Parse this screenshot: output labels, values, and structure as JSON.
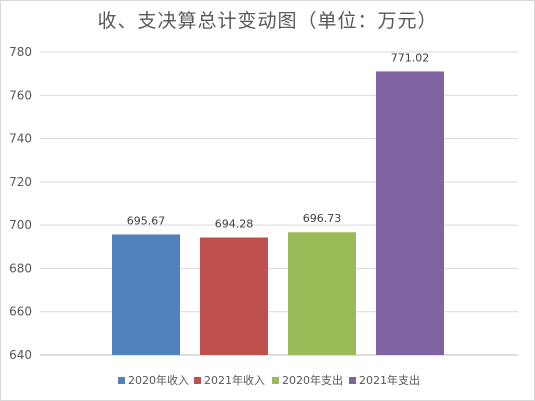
{
  "chart_data": {
    "type": "bar",
    "title": "收、支决算总计变动图（单位：万元）",
    "categories": [
      "2020年收入",
      "2021年收入",
      "2020年支出",
      "2021年支出"
    ],
    "values": [
      695.67,
      694.28,
      696.73,
      771.02
    ],
    "value_labels": [
      "695.67",
      "694.28",
      "696.73",
      "771.02"
    ],
    "colors": [
      "#4f81bd",
      "#c0504d",
      "#9bbb59",
      "#8064a2"
    ],
    "ylim": [
      640,
      780
    ],
    "yticks": [
      640,
      660,
      680,
      700,
      720,
      740,
      760,
      780
    ],
    "grid": true,
    "legend": "bottom"
  }
}
